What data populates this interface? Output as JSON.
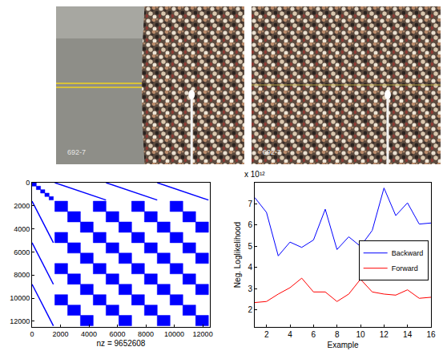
{
  "photos": [
    {
      "overlay_text": "692-7"
    },
    {
      "overlay_text": "692-7"
    }
  ],
  "chart_data": [
    {
      "type": "spy",
      "xlabel": "nz = 9652608",
      "color": "#0000ff",
      "grid": false,
      "xlim": [
        0,
        12500
      ],
      "ylim": [
        12500,
        0
      ],
      "xticks": [
        0,
        2000,
        4000,
        6000,
        8000,
        10000,
        12000
      ],
      "yticks": [
        0,
        2000,
        4000,
        6000,
        8000,
        10000,
        12000
      ],
      "blocks": [
        [
          0,
          300,
          0,
          300
        ],
        [
          300,
          600,
          300,
          600
        ],
        [
          600,
          900,
          600,
          900
        ],
        [
          900,
          1200,
          900,
          1200
        ],
        [
          1200,
          1500,
          1200,
          1500
        ],
        [
          1600,
          2500,
          1600,
          2500
        ],
        [
          4300,
          5200,
          1600,
          2500
        ],
        [
          7000,
          7900,
          1600,
          2500
        ],
        [
          9700,
          10600,
          1600,
          2500
        ],
        [
          1600,
          2500,
          4300,
          5200
        ],
        [
          4300,
          5200,
          4300,
          5200
        ],
        [
          7000,
          7900,
          4300,
          5200
        ],
        [
          9700,
          10600,
          4300,
          5200
        ],
        [
          1600,
          2500,
          7000,
          7900
        ],
        [
          4300,
          5200,
          7000,
          7900
        ],
        [
          7000,
          7900,
          7000,
          7900
        ],
        [
          9700,
          10600,
          7000,
          7900
        ],
        [
          1600,
          2500,
          9700,
          10600
        ],
        [
          4300,
          5200,
          9700,
          10600
        ],
        [
          7000,
          7900,
          9700,
          10600
        ],
        [
          9700,
          10600,
          9700,
          10600
        ],
        [
          2500,
          3400,
          2500,
          3400
        ],
        [
          5200,
          6100,
          2500,
          3400
        ],
        [
          7900,
          8800,
          2500,
          3400
        ],
        [
          10600,
          11500,
          2500,
          3400
        ],
        [
          2500,
          3400,
          5200,
          6100
        ],
        [
          5200,
          6100,
          5200,
          6100
        ],
        [
          7900,
          8800,
          5200,
          6100
        ],
        [
          10600,
          11500,
          5200,
          6100
        ],
        [
          2500,
          3400,
          7900,
          8800
        ],
        [
          5200,
          6100,
          7900,
          8800
        ],
        [
          7900,
          8800,
          7900,
          8800
        ],
        [
          10600,
          11500,
          7900,
          8800
        ],
        [
          2500,
          3400,
          10600,
          11500
        ],
        [
          5200,
          6100,
          10600,
          11500
        ],
        [
          7900,
          8800,
          10600,
          11500
        ],
        [
          10600,
          11500,
          10600,
          11500
        ],
        [
          3400,
          4300,
          3400,
          4300
        ],
        [
          6100,
          7000,
          3400,
          4300
        ],
        [
          8800,
          9700,
          3400,
          4300
        ],
        [
          11500,
          12400,
          3400,
          4300
        ],
        [
          3400,
          4300,
          6100,
          7000
        ],
        [
          6100,
          7000,
          6100,
          7000
        ],
        [
          8800,
          9700,
          6100,
          7000
        ],
        [
          11500,
          12400,
          6100,
          7000
        ],
        [
          3400,
          4300,
          8800,
          9700
        ],
        [
          6100,
          7000,
          8800,
          9700
        ],
        [
          8800,
          9700,
          8800,
          9700
        ],
        [
          11500,
          12400,
          8800,
          9700
        ],
        [
          3400,
          4300,
          11500,
          12400
        ],
        [
          6100,
          7000,
          11500,
          12400
        ],
        [
          8800,
          9700,
          11500,
          12400
        ],
        [
          11500,
          12400,
          11500,
          12400
        ]
      ],
      "lines": [
        {
          "x": [
            1600,
            5200
          ],
          "y": [
            0,
            1500
          ]
        },
        {
          "x": [
            5200,
            8800
          ],
          "y": [
            0,
            1500
          ]
        },
        {
          "x": [
            8800,
            12400
          ],
          "y": [
            0,
            1500
          ]
        },
        {
          "x": [
            0,
            1500
          ],
          "y": [
            1600,
            5200
          ]
        },
        {
          "x": [
            0,
            1500
          ],
          "y": [
            5200,
            8800
          ]
        },
        {
          "x": [
            0,
            1500
          ],
          "y": [
            8800,
            12400
          ]
        }
      ]
    },
    {
      "type": "line",
      "xlabel": "Example",
      "ylabel": "Neg. Loglikelihood",
      "y_scale_label": "x 10¹²",
      "grid": false,
      "legend": "right",
      "x": [
        1,
        2,
        3,
        4,
        5,
        6,
        7,
        8,
        9,
        10,
        11,
        12,
        13,
        14,
        15,
        16
      ],
      "xlim": [
        1,
        16
      ],
      "xticks": [
        2,
        4,
        6,
        8,
        10,
        12,
        14,
        16
      ],
      "ylim": [
        1.2,
        8
      ],
      "yticks": [
        2,
        3,
        4,
        5,
        6,
        7
      ],
      "series": [
        {
          "name": "Backward",
          "color": "#0000ff",
          "values": [
            7.3,
            6.6,
            4.55,
            5.2,
            4.95,
            5.3,
            6.75,
            4.85,
            5.45,
            5.0,
            5.75,
            7.75,
            6.45,
            7.05,
            6.05,
            6.1
          ]
        },
        {
          "name": "Forward",
          "color": "#ff0000",
          "values": [
            2.35,
            2.4,
            2.75,
            3.05,
            3.5,
            2.85,
            2.85,
            2.4,
            2.75,
            3.45,
            2.85,
            2.75,
            2.7,
            2.95,
            2.55,
            2.6
          ]
        }
      ]
    }
  ]
}
